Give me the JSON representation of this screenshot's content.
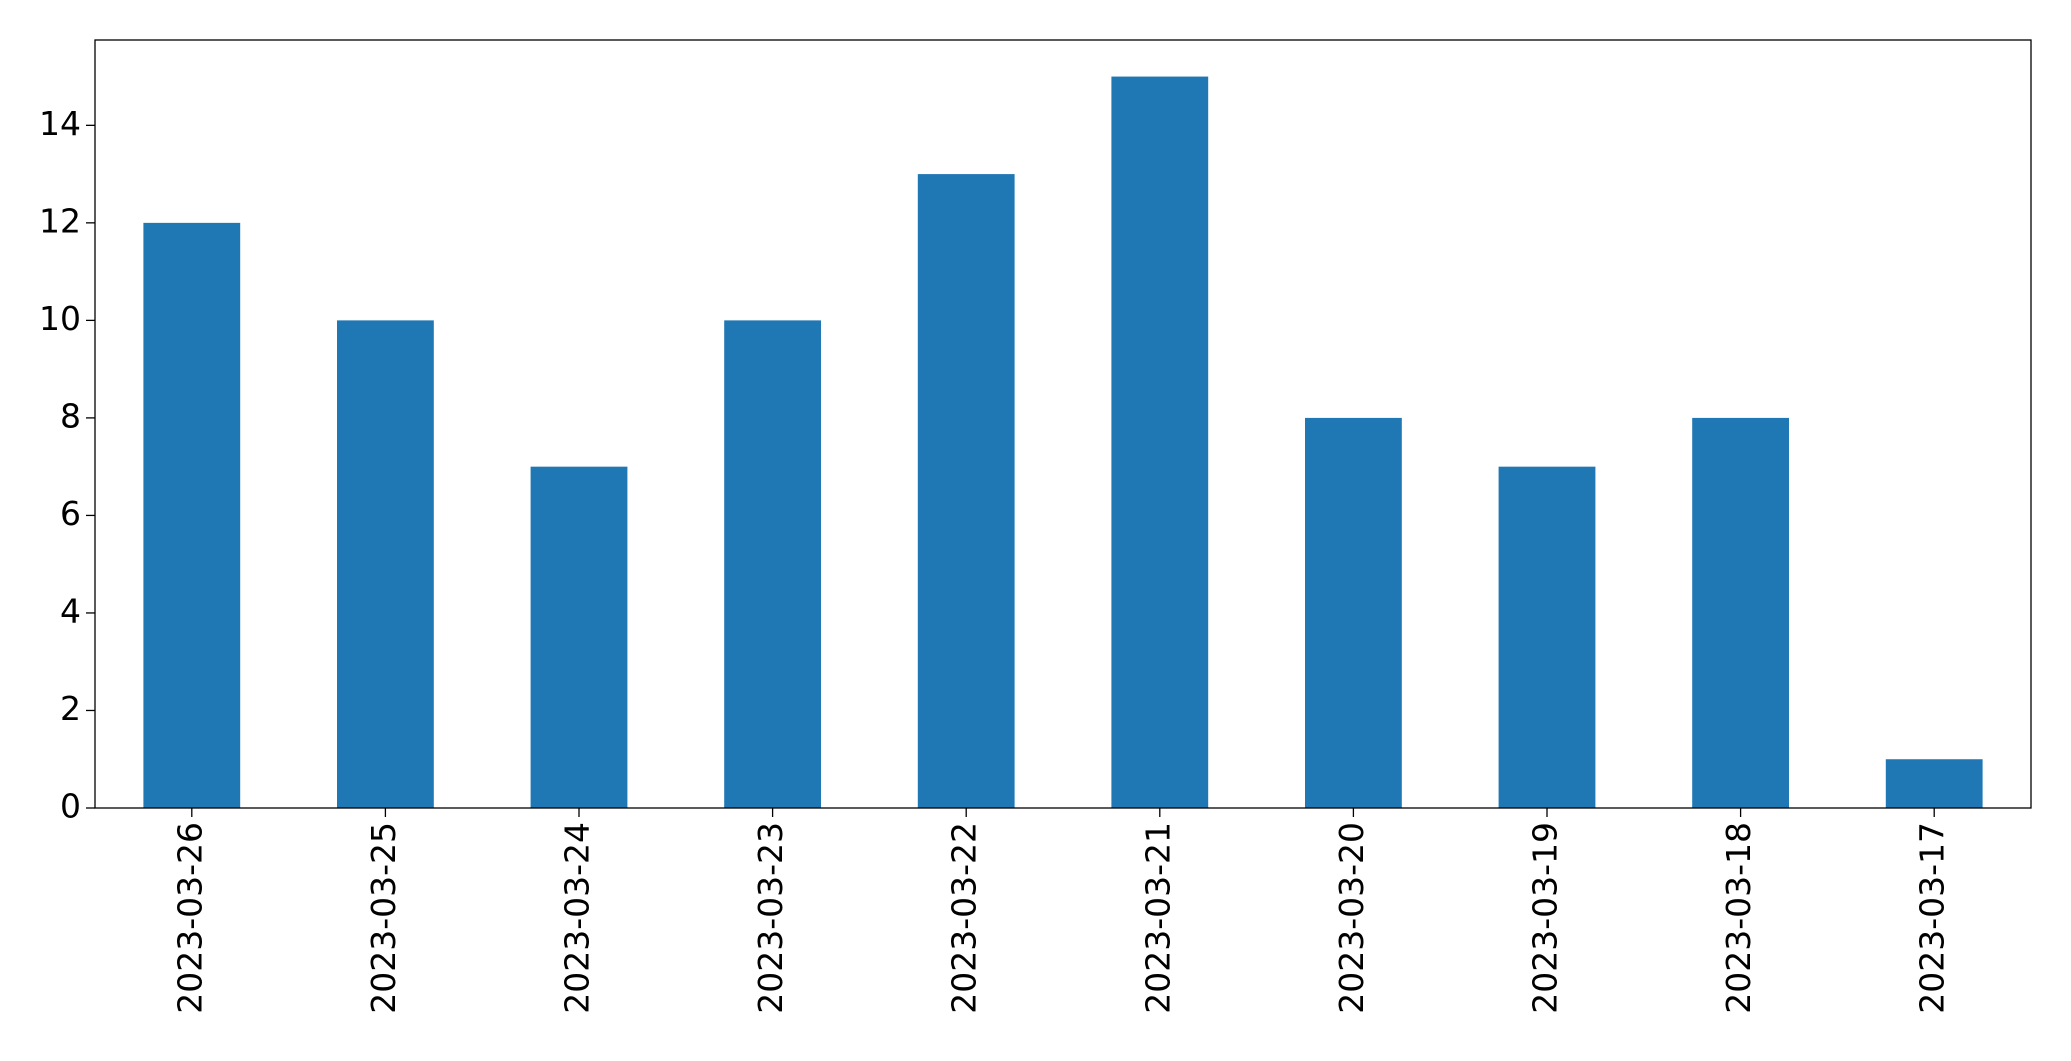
{
  "chart_data": {
    "type": "bar",
    "categories": [
      "2023-03-26",
      "2023-03-25",
      "2023-03-24",
      "2023-03-23",
      "2023-03-22",
      "2023-03-21",
      "2023-03-20",
      "2023-03-19",
      "2023-03-18",
      "2023-03-17"
    ],
    "values": [
      12,
      10,
      7,
      10,
      13,
      15,
      8,
      7,
      8,
      1
    ],
    "color": "#1f77b4",
    "ylim": [
      0,
      15.75
    ],
    "yticks": [
      0,
      2,
      4,
      6,
      8,
      10,
      12,
      14
    ],
    "grid": false
  }
}
